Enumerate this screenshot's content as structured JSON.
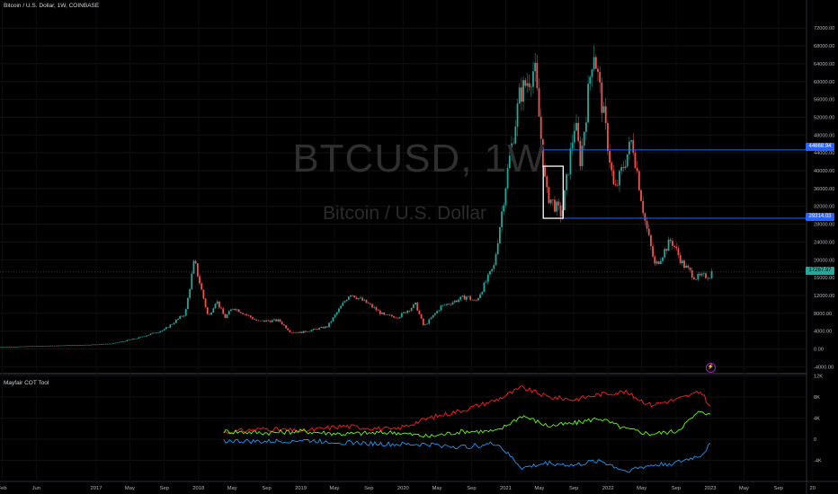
{
  "header": {
    "title": "Bitcoin / U.S. Dollar, 1W, COINBASE",
    "watermark_symbol": "BTCUSD, 1W",
    "watermark_name": "Bitcoin / U.S. Dollar",
    "indicator_name": "Mayfair COT Tool",
    "event_icon_label": "⚡"
  },
  "price_tags": {
    "upper_level": "44668.94",
    "lower_level": "29314.03",
    "last_price": "17267.97"
  },
  "chart_data": [
    {
      "type": "candlestick",
      "title": "Bitcoin / U.S. Dollar, 1W, COINBASE",
      "x_ticks": [
        "Feb",
        "Jun",
        "2017",
        "May",
        "Sep",
        "2018",
        "May",
        "Sep",
        "2019",
        "May",
        "Sep",
        "2020",
        "May",
        "Sep",
        "2021",
        "May",
        "Sep",
        "2022",
        "May",
        "Sep",
        "2023",
        "May",
        "Sep",
        "20"
      ],
      "y_ticks": [
        "72000.00",
        "68000.00",
        "64000.00",
        "60000.00",
        "56000.00",
        "52000.00",
        "48000.00",
        "44000.00",
        "40000.00",
        "36000.00",
        "32000.00",
        "28000.00",
        "24000.00",
        "20000.00",
        "16000.00",
        "12000.00",
        "8000.00",
        "4000.00",
        "0.00",
        "-4000.00"
      ],
      "ylim": [
        -5600,
        74500
      ],
      "close_path": [
        [
          "2016-01-15",
          400
        ],
        [
          "2016-06-15",
          650
        ],
        [
          "2016-12-15",
          950
        ],
        [
          "2017-03-01",
          1200
        ],
        [
          "2017-06-01",
          2500
        ],
        [
          "2017-09-01",
          4300
        ],
        [
          "2017-11-15",
          8000
        ],
        [
          "2017-12-17",
          19800
        ],
        [
          "2018-02-05",
          7000
        ],
        [
          "2018-03-05",
          11000
        ],
        [
          "2018-04-05",
          7000
        ],
        [
          "2018-05-05",
          9300
        ],
        [
          "2018-08-01",
          6200
        ],
        [
          "2018-10-15",
          6400
        ],
        [
          "2018-11-25",
          3800
        ],
        [
          "2019-01-01",
          3700
        ],
        [
          "2019-04-05",
          5000
        ],
        [
          "2019-06-26",
          12500
        ],
        [
          "2019-09-01",
          10000
        ],
        [
          "2019-10-25",
          7500
        ],
        [
          "2019-12-15",
          7200
        ],
        [
          "2020-02-15",
          10000
        ],
        [
          "2020-03-15",
          5000
        ],
        [
          "2020-05-15",
          9500
        ],
        [
          "2020-08-15",
          11800
        ],
        [
          "2020-09-15",
          10500
        ],
        [
          "2020-11-20",
          18500
        ],
        [
          "2021-01-08",
          40000
        ],
        [
          "2021-02-20",
          57000
        ],
        [
          "2021-04-14",
          63000
        ],
        [
          "2021-05-25",
          35000
        ],
        [
          "2021-07-20",
          30000
        ],
        [
          "2021-09-05",
          51000
        ],
        [
          "2021-09-25",
          42000
        ],
        [
          "2021-11-10",
          68000
        ],
        [
          "2021-12-31",
          46000
        ],
        [
          "2022-01-24",
          35000
        ],
        [
          "2022-03-28",
          47000
        ],
        [
          "2022-05-12",
          29000
        ],
        [
          "2022-06-18",
          18500
        ],
        [
          "2022-08-14",
          24500
        ],
        [
          "2022-09-25",
          19000
        ],
        [
          "2022-11-09",
          16000
        ],
        [
          "2022-12-31",
          16500
        ],
        [
          "2023-01-06",
          17268
        ]
      ],
      "horizontal_levels": [
        44668.94,
        29314.03,
        17267.97
      ],
      "rectangle": {
        "x0": "2021-05-15",
        "x1": "2021-07-25",
        "y0": 29314.03,
        "y1": 41000
      }
    },
    {
      "type": "line",
      "title": "Mayfair COT Tool",
      "y_ticks": [
        "12K",
        "8K",
        "4K",
        "0",
        "-4K"
      ],
      "ylim": [
        -7200,
        12000
      ],
      "series": [
        {
          "name": "",
          "color": "#ff1f1f",
          "values": [
            [
              "2018-04-01",
              1300
            ],
            [
              "2018-09-01",
              2000
            ],
            [
              "2019-01-01",
              1500
            ],
            [
              "2019-06-01",
              2500
            ],
            [
              "2019-12-01",
              1800
            ],
            [
              "2020-04-01",
              4000
            ],
            [
              "2020-08-01",
              5500
            ],
            [
              "2020-12-01",
              7500
            ],
            [
              "2021-03-01",
              9800
            ],
            [
              "2021-06-01",
              8000
            ],
            [
              "2021-09-01",
              7500
            ],
            [
              "2021-12-01",
              8500
            ],
            [
              "2022-03-01",
              9000
            ],
            [
              "2022-06-01",
              6500
            ],
            [
              "2022-09-01",
              7500
            ],
            [
              "2022-12-01",
              9000
            ],
            [
              "2023-01-01",
              6000
            ]
          ]
        },
        {
          "name": "",
          "color": "#66ff00",
          "values": [
            [
              "2018-04-01",
              1500
            ],
            [
              "2018-09-01",
              1200
            ],
            [
              "2019-01-01",
              1500
            ],
            [
              "2019-06-01",
              1000
            ],
            [
              "2019-12-01",
              1300
            ],
            [
              "2020-04-01",
              500
            ],
            [
              "2020-08-01",
              1500
            ],
            [
              "2020-12-01",
              1500
            ],
            [
              "2021-03-01",
              4500
            ],
            [
              "2021-06-01",
              2500
            ],
            [
              "2021-09-01",
              3000
            ],
            [
              "2021-12-01",
              4000
            ],
            [
              "2022-03-01",
              2000
            ],
            [
              "2022-06-01",
              1000
            ],
            [
              "2022-09-01",
              1500
            ],
            [
              "2022-12-01",
              5500
            ],
            [
              "2023-01-01",
              4500
            ]
          ]
        },
        {
          "name": "",
          "color": "#2196f3",
          "values": [
            [
              "2018-04-01",
              -300
            ],
            [
              "2018-09-01",
              -500
            ],
            [
              "2019-01-01",
              -200
            ],
            [
              "2019-06-01",
              -600
            ],
            [
              "2019-12-01",
              -1000
            ],
            [
              "2020-04-01",
              -1000
            ],
            [
              "2020-08-01",
              -1500
            ],
            [
              "2020-12-01",
              -800
            ],
            [
              "2021-03-01",
              -5500
            ],
            [
              "2021-06-01",
              -4500
            ],
            [
              "2021-09-01",
              -5000
            ],
            [
              "2021-12-01",
              -4000
            ],
            [
              "2022-03-01",
              -6000
            ],
            [
              "2022-06-01",
              -5000
            ],
            [
              "2022-09-01",
              -4500
            ],
            [
              "2022-12-01",
              -3000
            ],
            [
              "2023-01-01",
              -1000
            ]
          ]
        }
      ]
    }
  ]
}
